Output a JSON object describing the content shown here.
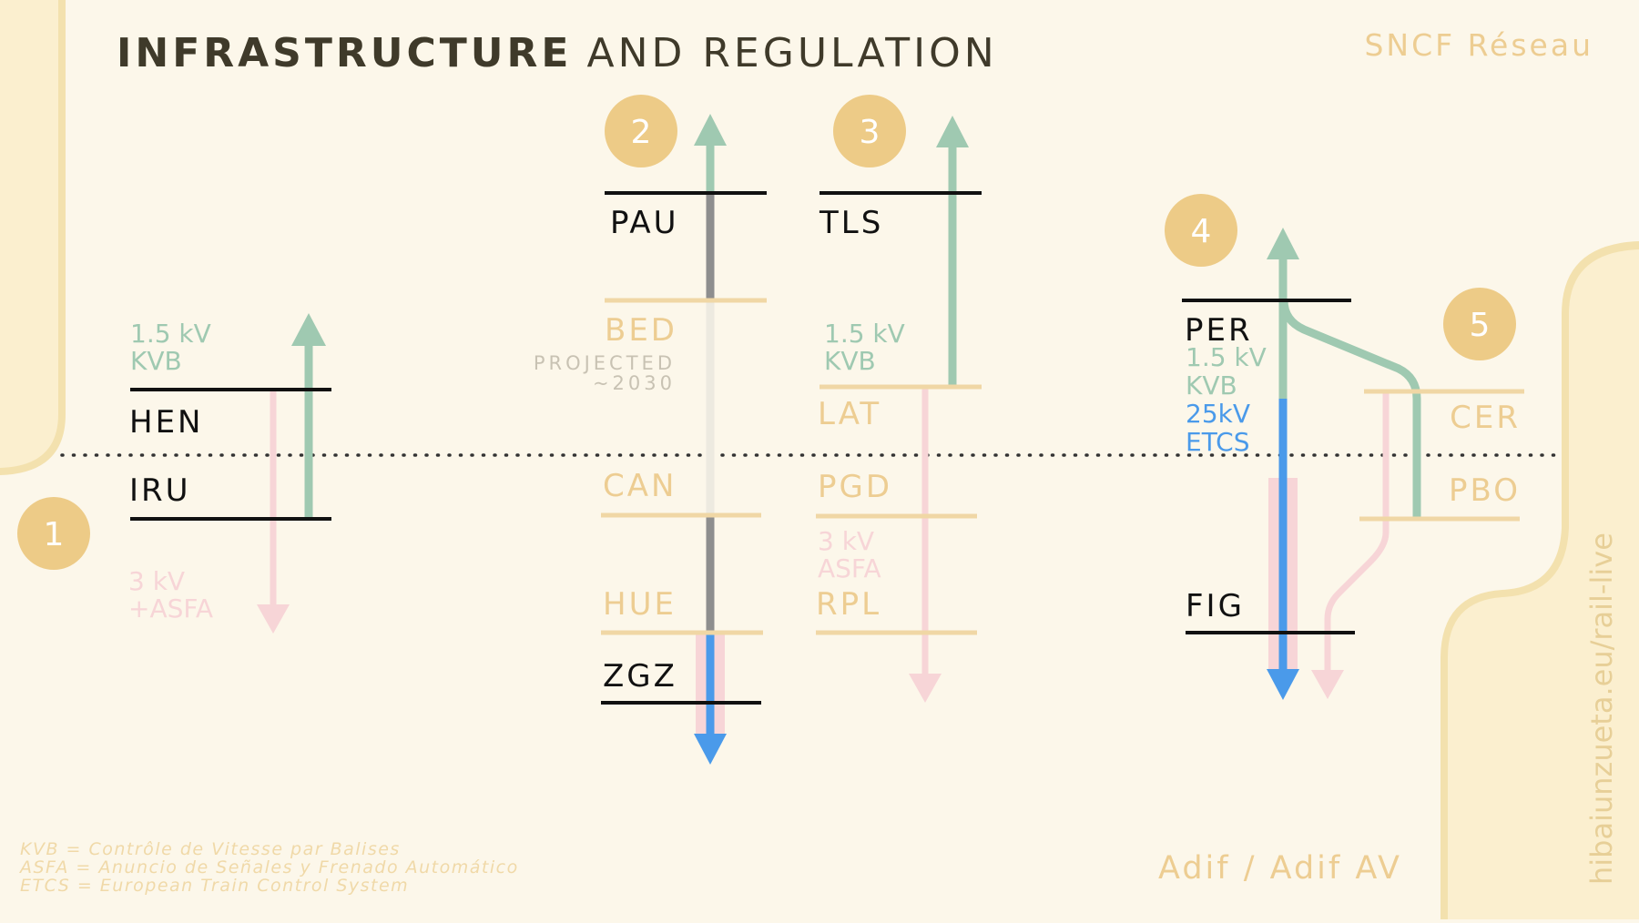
{
  "title": {
    "bold": "INFRASTRUCTURE",
    "rest": "AND REGULATION"
  },
  "operators": {
    "france": "SNCF Réseau",
    "spain": "Adif / Adif AV"
  },
  "website": "hibaiunzueta.eu/rail-live",
  "colors": {
    "background": "#FCF7EA",
    "sand": "#F3E1AE",
    "badge": "#EDCB87",
    "green": "#9FC9B1",
    "pink": "#F7D5D7",
    "blue": "#4A9AEA",
    "gray": "#8E8E8E",
    "ink": "#111111",
    "muted": "#E8CF9D"
  },
  "crossings": [
    {
      "number": "1",
      "upper_label": [
        "1.5 kV",
        "KVB"
      ],
      "stations": [
        "HEN",
        "IRU"
      ],
      "lower_label": [
        "3 kV",
        "+ASFA"
      ]
    },
    {
      "number": "2",
      "stations": [
        "PAU",
        "BED",
        "CAN",
        "HUE",
        "ZGZ"
      ],
      "note": [
        "PROJECTED",
        "~2030"
      ]
    },
    {
      "number": "3",
      "upper_label": [
        "1.5 kV",
        "KVB"
      ],
      "stations": [
        "TLS",
        "LAT",
        "PGD",
        "RPL"
      ],
      "lower_label": [
        "3 kV",
        "ASFA"
      ]
    },
    {
      "number": "4",
      "stations": [
        "PER",
        "FIG"
      ],
      "labels_green": [
        "1.5 kV",
        "KVB"
      ],
      "labels_blue": [
        "25kV",
        "ETCS"
      ]
    },
    {
      "number": "5",
      "stations": [
        "CER",
        "PBO"
      ]
    }
  ],
  "legend": [
    "KVB = Contrôle de Vitesse par Balises",
    "ASFA = Anuncio de Señales y Frenado Automático",
    "ETCS = European Train Control System"
  ]
}
